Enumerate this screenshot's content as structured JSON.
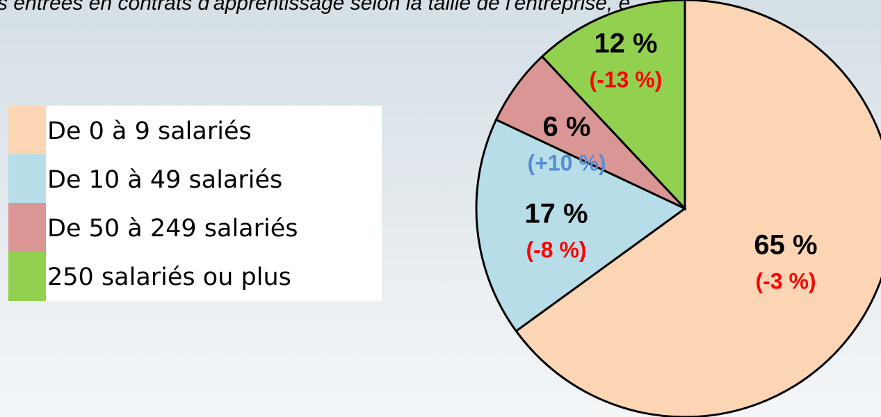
{
  "chart_data": {
    "type": "pie",
    "title": "s entrées en contrats d'apprentissage selon la taille de l'entreprise, e",
    "categories": [
      "De 0 à 9 salariés",
      "De 10 à 49 salariés",
      "De 50 à 249 salariés",
      "250 salariés ou plus"
    ],
    "values": [
      65,
      17,
      6,
      12
    ],
    "value_labels": [
      "65 %",
      "17 %",
      "6 %",
      "12 %"
    ],
    "change_labels": [
      "(-3 %)",
      "(-8 %)",
      "(+10 %)",
      "(-13 %)"
    ],
    "colors": [
      "#fcd5b5",
      "#b7dde8",
      "#d99694",
      "#92d050"
    ],
    "change_colors": [
      "#ff0000",
      "#ff0000",
      "#558ed5",
      "#ff0000"
    ]
  }
}
